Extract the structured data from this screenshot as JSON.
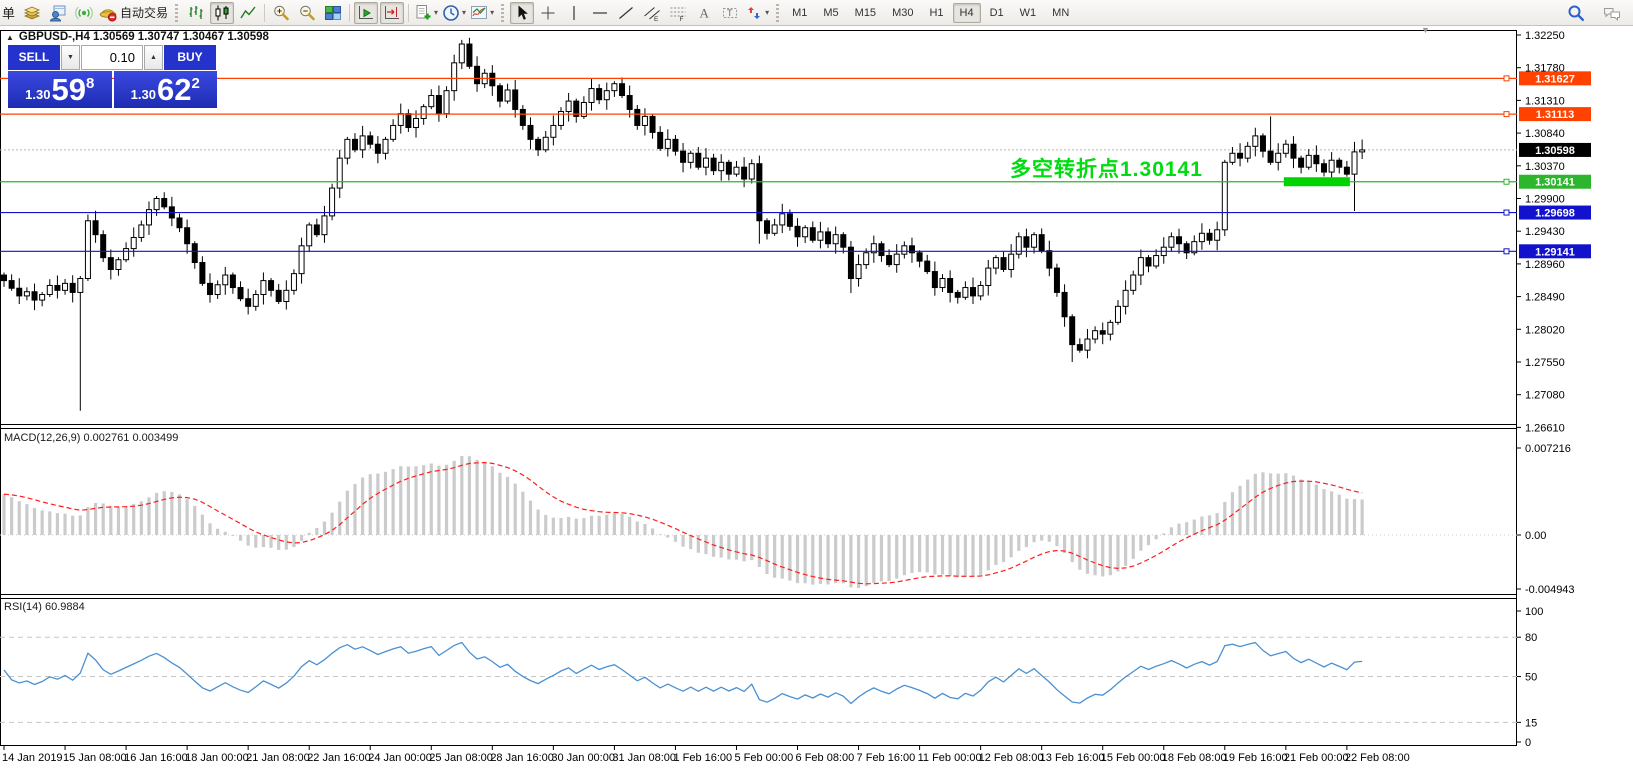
{
  "toolbar": {
    "menu_text": "单",
    "auto_trading_label": "自动交易",
    "groups": [
      {
        "sep": "none",
        "items": [
          {
            "name": "history-center-icon"
          },
          {
            "name": "profile-icon"
          },
          {
            "name": "signals-icon"
          },
          {
            "name": "auto-trading-button",
            "with_label": true
          }
        ]
      },
      {
        "sep": "handle",
        "items": [
          {
            "name": "bar-chart-icon"
          },
          {
            "name": "candlestick-chart-icon",
            "pressed": true
          },
          {
            "name": "line-chart-icon"
          }
        ]
      },
      {
        "sep": "line",
        "items": [
          {
            "name": "zoom-in-icon"
          },
          {
            "name": "zoom-out-icon"
          },
          {
            "name": "tile-windows-icon"
          }
        ]
      },
      {
        "sep": "line",
        "items": [
          {
            "name": "auto-scroll-icon",
            "pressed": true
          },
          {
            "name": "chart-shift-icon",
            "pressed": true
          }
        ]
      },
      {
        "sep": "line",
        "items": [
          {
            "name": "new-order-icon",
            "dropdown": true
          },
          {
            "name": "periods-icon",
            "dropdown": true
          },
          {
            "name": "templates-icon",
            "dropdown": true
          }
        ]
      },
      {
        "sep": "handle",
        "items": [
          {
            "name": "cursor-icon",
            "pressed": true
          },
          {
            "name": "crosshair-icon"
          },
          {
            "name": "vertical-line-icon"
          },
          {
            "name": "horizontal-line-icon"
          },
          {
            "name": "trendline-icon"
          },
          {
            "name": "channel-icon"
          },
          {
            "name": "fibonacci-icon"
          },
          {
            "name": "text-icon"
          },
          {
            "name": "label-icon"
          },
          {
            "name": "shapes-icon",
            "dropdown": true
          }
        ]
      },
      {
        "sep": "handle",
        "timeframes": true
      }
    ],
    "timeframes": [
      {
        "label": "M1"
      },
      {
        "label": "M5"
      },
      {
        "label": "M15"
      },
      {
        "label": "M30"
      },
      {
        "label": "H1"
      },
      {
        "label": "H4",
        "pressed": true
      },
      {
        "label": "D1"
      },
      {
        "label": "W1"
      },
      {
        "label": "MN"
      }
    ],
    "right_icons": [
      {
        "name": "search-icon"
      },
      {
        "name": "chat-icon"
      }
    ]
  },
  "chart": {
    "title": "GBPUSD-,H4  1.30569 1.30747 1.30467 1.30598",
    "symbol": "GBPUSD-",
    "period": "H4"
  },
  "trade_panel": {
    "sell_label": "SELL",
    "buy_label": "BUY",
    "volume": "0.10",
    "sell_price": {
      "small": "1.30",
      "big": "59",
      "sup": "8"
    },
    "buy_price": {
      "small": "1.30",
      "big": "62",
      "sup": "2"
    }
  },
  "annotation": {
    "text": "多空转折点1.30141",
    "color": "#00dc10"
  },
  "panels": {
    "macd_label": "MACD(12,26,9)",
    "macd_value_1": "0.002761",
    "macd_value_2": "0.003499",
    "rsi_label": "RSI(14)",
    "rsi_value": "60.9884"
  },
  "chart_data": {
    "type": "candlestick",
    "title": "GBPUSD- H4",
    "y_axis": {
      "top": 1.3225,
      "step": 0.0047,
      "count": 13
    },
    "x_ticks": [
      [
        "14 Jan 2019",
        0
      ],
      [
        "15 Jan 08:00",
        8
      ],
      [
        "16 Jan 16:00",
        16
      ],
      [
        "18 Jan 00:00",
        24
      ],
      [
        "21 Jan 08:00",
        32
      ],
      [
        "22 Jan 16:00",
        40
      ],
      [
        "24 Jan 00:00",
        48
      ],
      [
        "25 Jan 08:00",
        56
      ],
      [
        "28 Jan 16:00",
        64
      ],
      [
        "30 Jan 00:00",
        72
      ],
      [
        "31 Jan 08:00",
        80
      ],
      [
        "1 Feb 16:00",
        88
      ],
      [
        "5 Feb 00:00",
        96
      ],
      [
        "6 Feb 08:00",
        104
      ],
      [
        "7 Feb 16:00",
        112
      ],
      [
        "11 Feb 00:00",
        120
      ],
      [
        "12 Feb 08:00",
        128
      ],
      [
        "13 Feb 16:00",
        136
      ],
      [
        "15 Feb 00:00",
        144
      ],
      [
        "18 Feb 08:00",
        152
      ],
      [
        "19 Feb 16:00",
        160
      ],
      [
        "21 Feb 00:00",
        168
      ],
      [
        "22 Feb 08:00",
        176
      ]
    ],
    "hlines": [
      {
        "price": 1.31627,
        "label": "1.31627",
        "color": "#ff4200"
      },
      {
        "price": 1.31113,
        "label": "1.31113",
        "color": "#ff4200"
      },
      {
        "price": 1.30141,
        "label": "1.30141",
        "color": "#2db52d"
      },
      {
        "price": 1.29698,
        "label": "1.29698",
        "color": "#1212cc"
      },
      {
        "price": 1.29141,
        "label": "1.29141",
        "color": "#1212cc"
      }
    ],
    "current_price": {
      "value": 1.30598,
      "label": "1.30598",
      "line_color": "#b4b4b4",
      "badge_color": "#000000"
    },
    "green_box": {
      "bar_start": 168,
      "bar_end": 176,
      "price": 1.30141,
      "color": "#00d400",
      "height": 9
    },
    "candles": {
      "first_open": 1.288,
      "default_wick": 0.0009,
      "closes": [
        1.2872,
        1.2861,
        1.285,
        1.2856,
        1.2844,
        1.2852,
        1.2865,
        1.2858,
        1.2868,
        1.2855,
        1.2875,
        1.2958,
        1.2938,
        1.2905,
        1.2888,
        1.2902,
        1.2918,
        1.2934,
        1.2952,
        1.2974,
        1.299,
        1.2978,
        1.2962,
        1.2948,
        1.2925,
        1.2898,
        1.2868,
        1.2852,
        1.2866,
        1.288,
        1.2862,
        1.2846,
        1.2835,
        1.2852,
        1.2872,
        1.2858,
        1.2842,
        1.2858,
        1.2882,
        1.2922,
        1.2952,
        1.2938,
        1.2965,
        1.3005,
        1.3048,
        1.3075,
        1.306,
        1.308,
        1.3068,
        1.3055,
        1.3075,
        1.3095,
        1.3112,
        1.3092,
        1.3105,
        1.3122,
        1.3138,
        1.3112,
        1.3145,
        1.3185,
        1.3212,
        1.318,
        1.3155,
        1.317,
        1.3152,
        1.313,
        1.3146,
        1.3118,
        1.3095,
        1.3075,
        1.306,
        1.3078,
        1.3095,
        1.3115,
        1.313,
        1.3108,
        1.3128,
        1.3148,
        1.3132,
        1.3145,
        1.3155,
        1.3138,
        1.3118,
        1.3095,
        1.3108,
        1.3085,
        1.3062,
        1.3075,
        1.3058,
        1.3042,
        1.3055,
        1.3035,
        1.3048,
        1.303,
        1.3042,
        1.3025,
        1.3035,
        1.3018,
        1.304,
        1.2958,
        1.294,
        1.2952,
        1.2968,
        1.295,
        1.2935,
        1.2948,
        1.293,
        1.2942,
        1.2925,
        1.2938,
        1.292,
        1.2875,
        1.2895,
        1.2912,
        1.2925,
        1.2908,
        1.2895,
        1.291,
        1.2922,
        1.2912,
        1.29,
        1.2885,
        1.2862,
        1.2875,
        1.2855,
        1.2848,
        1.2862,
        1.285,
        1.2865,
        1.289,
        1.2905,
        1.2888,
        1.291,
        1.2935,
        1.292,
        1.2938,
        1.2915,
        1.289,
        1.2855,
        1.282,
        1.278,
        1.2772,
        1.2788,
        1.28,
        1.2795,
        1.2812,
        1.2835,
        1.2858,
        1.288,
        1.2905,
        1.2893,
        1.2908,
        1.292,
        1.2935,
        1.2925,
        1.2912,
        1.2928,
        1.294,
        1.293,
        1.2945,
        1.3042,
        1.3055,
        1.3048,
        1.3065,
        1.308,
        1.3058,
        1.3042,
        1.3055,
        1.3068,
        1.3048,
        1.3035,
        1.3052,
        1.304,
        1.3028,
        1.3045,
        1.3035,
        1.3025,
        1.3057,
        1.30598
      ],
      "specials": {
        "10": {
          "l": 1.2685
        },
        "60": {
          "h": 1.3218
        },
        "99": {
          "l": 1.2925
        },
        "111": {
          "l": 1.2854
        },
        "140": {
          "l": 1.2755
        },
        "166": {
          "h": 1.3108
        },
        "177": {
          "l": 1.2972
        },
        "178": {
          "h": 1.30747,
          "l": 1.30467
        }
      }
    },
    "indicators": [
      {
        "name": "MACD",
        "params": [
          12,
          26,
          9
        ],
        "display_values": [
          "0.002761",
          "0.003499"
        ],
        "axis_labels": [
          "0.007216",
          "0.00",
          "-0.004943"
        ],
        "seed_offsets": [
          -0.0012,
          -0.0046
        ],
        "histogram_color": "#cbcbcb",
        "signal_color": "#ff1d1d"
      },
      {
        "name": "RSI",
        "params": [
          14
        ],
        "display_value": "60.9884",
        "axis_values": [
          100,
          80,
          50,
          15,
          0
        ],
        "levels": [
          80,
          50,
          15
        ],
        "line_color": "#4a90d2",
        "level_color": "#c6c6c6"
      }
    ]
  }
}
